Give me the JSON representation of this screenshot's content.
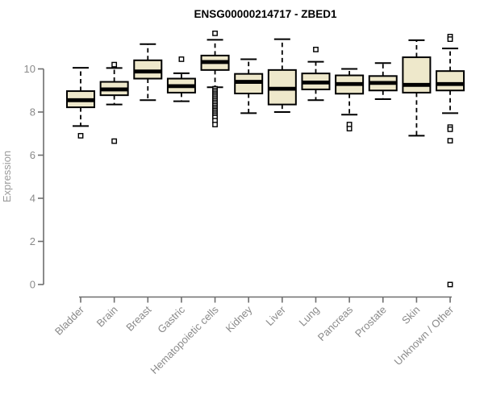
{
  "title": "ENSG00000214717 - ZBED1",
  "colors": {
    "background": "#FFFFFF",
    "box_fill": "#EEE8CB",
    "box_border": "#000000",
    "median": "#000000",
    "whisker": "#000000",
    "outlier_stroke": "#000000",
    "outlier_fill": "#FFFFFF",
    "axis": "#6E6E6E",
    "tick_label": "#8A8A8A",
    "axis_label": "#9A9A9A",
    "title": "#000000"
  },
  "chart_data": {
    "type": "boxplot",
    "title": "ENSG00000214717 - ZBED1",
    "xlabel": "",
    "ylabel": "Expression",
    "ylim": [
      -0.5,
      11.8
    ],
    "yticks": [
      0,
      2,
      4,
      6,
      8,
      10
    ],
    "grid": false,
    "legend": "none",
    "x_tick_rotation": -45,
    "categories": [
      "Bladder",
      "Brain",
      "Breast",
      "Gastric",
      "Hematopoietic cells",
      "Kidney",
      "Liver",
      "Lung",
      "Pancreas",
      "Prostate",
      "Skin",
      "Unknown / Other"
    ],
    "series": [
      {
        "name": "Bladder",
        "whisker_low": 7.35,
        "q1": 8.22,
        "median": 8.55,
        "q3": 8.97,
        "whisker_high": 10.05,
        "outliers": [
          6.9
        ]
      },
      {
        "name": "Brain",
        "whisker_low": 8.35,
        "q1": 8.78,
        "median": 9.05,
        "q3": 9.4,
        "whisker_high": 10.04,
        "outliers": [
          10.2,
          6.65
        ]
      },
      {
        "name": "Breast",
        "whisker_low": 8.55,
        "q1": 9.55,
        "median": 9.88,
        "q3": 10.4,
        "whisker_high": 11.15,
        "outliers": []
      },
      {
        "name": "Gastric",
        "whisker_low": 8.5,
        "q1": 8.9,
        "median": 9.2,
        "q3": 9.55,
        "whisker_high": 9.8,
        "outliers": [
          10.45
        ]
      },
      {
        "name": "Hematopoietic cells",
        "whisker_low": 9.15,
        "q1": 9.95,
        "median": 10.32,
        "q3": 10.62,
        "whisker_high": 11.35,
        "outliers": [
          11.65,
          9.08,
          9.0,
          8.92,
          8.84,
          8.77,
          8.69,
          8.61,
          8.53,
          8.45,
          8.37,
          8.29,
          8.21,
          8.13,
          8.06,
          7.98,
          7.9,
          7.82,
          7.74,
          7.6,
          7.42
        ]
      },
      {
        "name": "Kidney",
        "whisker_low": 7.95,
        "q1": 8.86,
        "median": 9.4,
        "q3": 9.77,
        "whisker_high": 10.45,
        "outliers": []
      },
      {
        "name": "Liver",
        "whisker_low": 8.0,
        "q1": 8.35,
        "median": 9.08,
        "q3": 9.95,
        "whisker_high": 11.38,
        "outliers": []
      },
      {
        "name": "Lung",
        "whisker_low": 8.55,
        "q1": 9.05,
        "median": 9.37,
        "q3": 9.79,
        "whisker_high": 10.33,
        "outliers": [
          10.9
        ]
      },
      {
        "name": "Pancreas",
        "whisker_low": 7.88,
        "q1": 8.85,
        "median": 9.3,
        "q3": 9.7,
        "whisker_high": 10.0,
        "outliers": [
          7.42,
          7.23
        ]
      },
      {
        "name": "Prostate",
        "whisker_low": 8.6,
        "q1": 9.0,
        "median": 9.35,
        "q3": 9.67,
        "whisker_high": 10.27,
        "outliers": []
      },
      {
        "name": "Skin",
        "whisker_low": 6.9,
        "q1": 8.9,
        "median": 9.26,
        "q3": 10.54,
        "whisker_high": 11.33,
        "outliers": []
      },
      {
        "name": "Unknown / Other",
        "whisker_low": 7.95,
        "q1": 9.0,
        "median": 9.3,
        "q3": 9.9,
        "whisker_high": 10.95,
        "outliers": [
          11.5,
          11.38,
          7.3,
          7.2,
          6.67,
          0.0
        ]
      }
    ]
  }
}
